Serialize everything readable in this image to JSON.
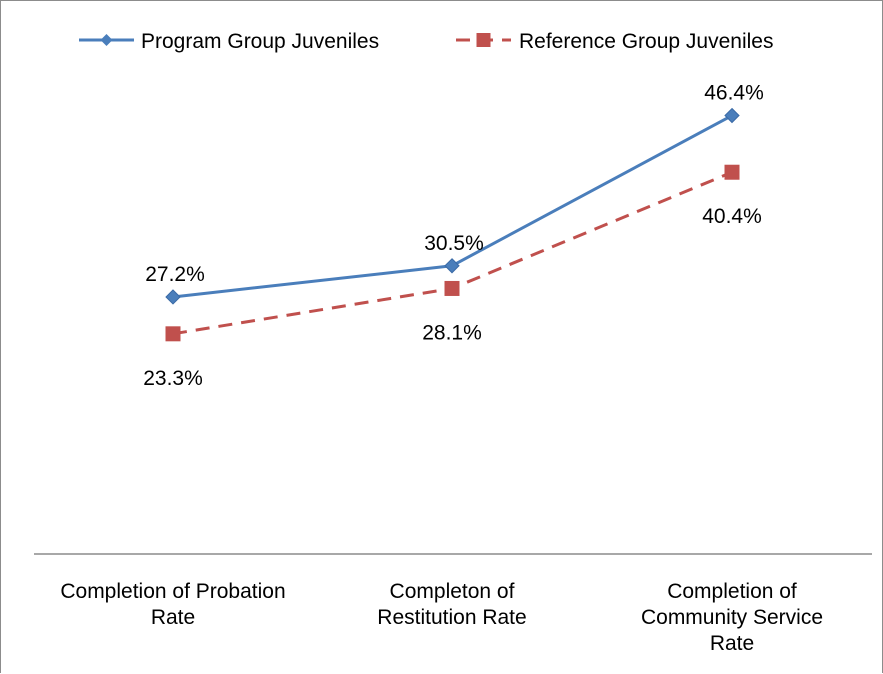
{
  "chart_data": {
    "type": "line",
    "categories": [
      [
        "Completion of Probation",
        "Rate"
      ],
      [
        "Completon of",
        "Restitution Rate"
      ],
      [
        "Completion of",
        "Community Service",
        "Rate"
      ]
    ],
    "series": [
      {
        "name": "Program Group Juveniles",
        "values": [
          27.2,
          30.5,
          46.4
        ],
        "labels": [
          "27.2%",
          "30.5%",
          "46.4%"
        ],
        "color": "#4a7ebb",
        "marker": "diamond",
        "line_style": "solid"
      },
      {
        "name": "Reference Group Juveniles",
        "values": [
          23.3,
          28.1,
          40.4
        ],
        "labels": [
          "23.3%",
          "28.1%",
          "40.4%"
        ],
        "color": "#c0504d",
        "marker": "square",
        "line_style": "dashed"
      }
    ],
    "ylim": [
      0,
      50
    ],
    "y_axis_visible": false,
    "grid": false,
    "legend_position": "top"
  }
}
